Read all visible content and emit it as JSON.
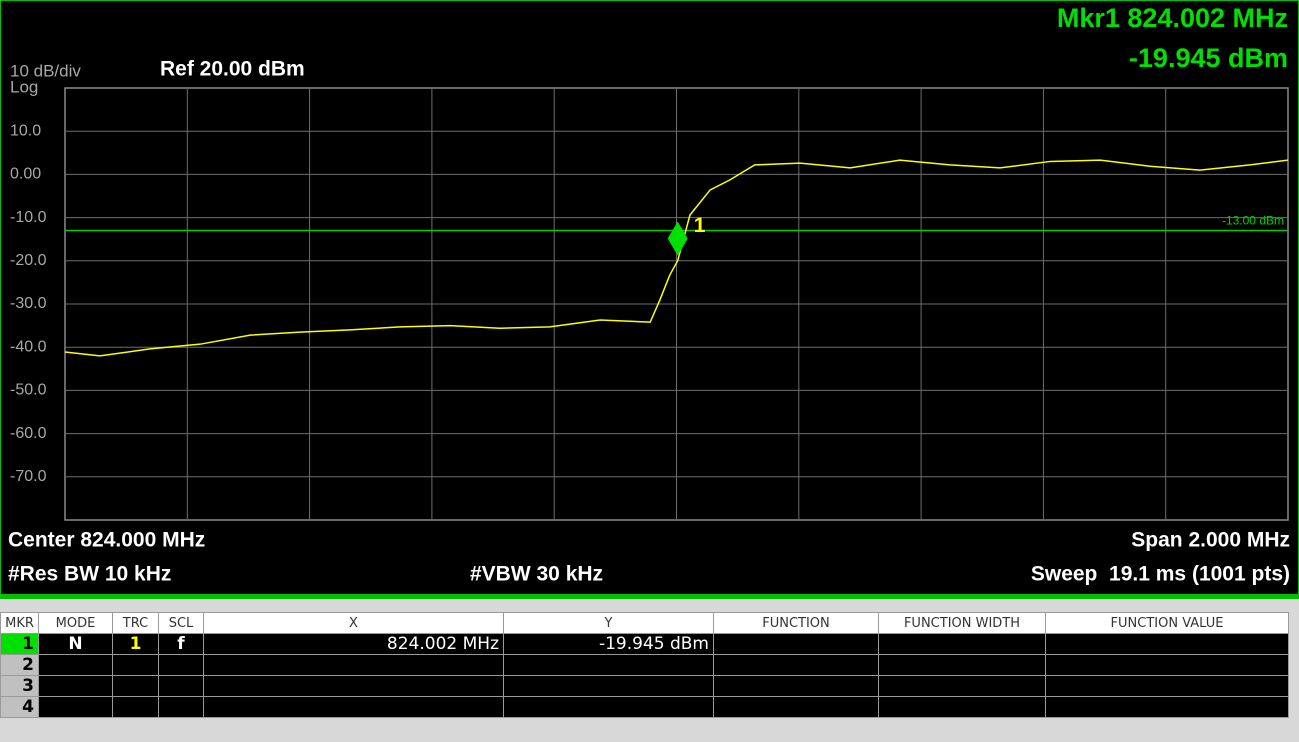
{
  "chart_data": {
    "type": "line",
    "scale_label": "10 dB/div",
    "log_label": "Log",
    "ref_label": "Ref 20.00 dBm",
    "marker_readout": [
      "Mkr1 824.002 MHz",
      "-19.945 dBm"
    ],
    "center_label": "Center 824.000 MHz",
    "span_label": "Span 2.000 MHz",
    "rbw_label": "#Res BW 10 kHz",
    "vbw_label": "#VBW 30 kHz",
    "sweep_label": "Sweep  19.1 ms (1001 pts)",
    "xlim": [
      823,
      825
    ],
    "ylim": [
      -80,
      20
    ],
    "yticks": [
      {
        "value": 10,
        "label": "10.0"
      },
      {
        "value": 0,
        "label": "0.00"
      },
      {
        "value": -10,
        "label": "-10.0"
      },
      {
        "value": -20,
        "label": "-20.0"
      },
      {
        "value": -30,
        "label": "-30.0"
      },
      {
        "value": -40,
        "label": "-40.0"
      },
      {
        "value": -50,
        "label": "-50.0"
      },
      {
        "value": -60,
        "label": "-60.0"
      },
      {
        "value": -70,
        "label": "-70.0"
      }
    ],
    "grid": true,
    "series": [
      {
        "name": "Trace 1",
        "color": "#ffff00",
        "x": [
          823.0,
          823.057,
          823.139,
          823.221,
          823.303,
          823.384,
          823.466,
          823.548,
          823.63,
          823.711,
          823.793,
          823.875,
          823.957,
          823.973,
          823.989,
          824.002,
          824.022,
          824.055,
          824.087,
          824.128,
          824.202,
          824.284,
          824.365,
          824.447,
          824.529,
          824.611,
          824.693,
          824.774,
          824.856,
          824.938,
          825.0
        ],
        "values": [
          -41.1,
          -42,
          -40.4,
          -39.3,
          -37.2,
          -36.5,
          -36,
          -35.3,
          -35,
          -35.6,
          -35.3,
          -33.7,
          -34.2,
          -29,
          -23.3,
          -19.945,
          -9.4,
          -3.6,
          -1.3,
          2.2,
          2.6,
          1.5,
          3.3,
          2.2,
          1.5,
          3,
          3.3,
          1.9,
          1,
          2.2,
          3.3
        ]
      }
    ],
    "display_line": {
      "value": -13,
      "label": "-13.00 dBm",
      "color": "#00d000"
    },
    "markers": [
      {
        "label": "1",
        "x": 824.002,
        "y": -19.945,
        "color": "#00e000"
      }
    ]
  },
  "table": {
    "headers": [
      "MKR",
      "MODE",
      "TRC",
      "SCL",
      "X",
      "Y",
      "FUNCTION",
      "FUNCTION WIDTH",
      "FUNCTION VALUE"
    ],
    "rows": [
      [
        "1",
        "N",
        "1",
        "f",
        "824.002 MHz",
        "-19.945 dBm"
      ],
      [
        "2"
      ],
      [
        "3"
      ],
      [
        "4"
      ]
    ]
  }
}
